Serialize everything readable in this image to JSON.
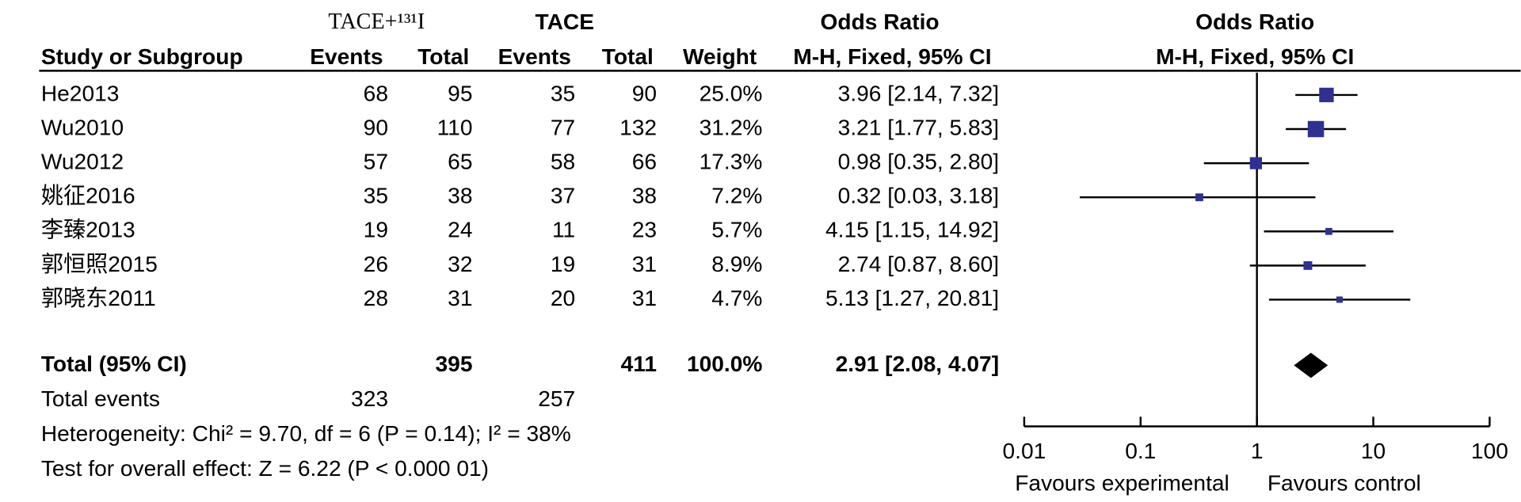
{
  "chart_data": {
    "type": "forest",
    "group_headers": [
      "TACE+¹³¹I",
      "TACE"
    ],
    "ci_column_title": "Odds Ratio",
    "columns": [
      "Study or Subgroup",
      "Events",
      "Total",
      "Events",
      "Total",
      "Weight",
      "M-H, Fixed, 95% CI"
    ],
    "plot_title": "Odds Ratio",
    "plot_subtitle": "M-H, Fixed, 95% CI",
    "studies": [
      {
        "name": "He2013",
        "exp_events": 68,
        "exp_total": 95,
        "ctl_events": 35,
        "ctl_total": 90,
        "weight": 25.0,
        "weight_label": "25.0%",
        "or": 3.96,
        "ci_low": 2.14,
        "ci_high": 7.32,
        "ci_label": "3.96 [2.14, 7.32]"
      },
      {
        "name": "Wu2010",
        "exp_events": 90,
        "exp_total": 110,
        "ctl_events": 77,
        "ctl_total": 132,
        "weight": 31.2,
        "weight_label": "31.2%",
        "or": 3.21,
        "ci_low": 1.77,
        "ci_high": 5.83,
        "ci_label": "3.21 [1.77, 5.83]"
      },
      {
        "name": "Wu2012",
        "exp_events": 57,
        "exp_total": 65,
        "ctl_events": 58,
        "ctl_total": 66,
        "weight": 17.3,
        "weight_label": "17.3%",
        "or": 0.98,
        "ci_low": 0.35,
        "ci_high": 2.8,
        "ci_label": "0.98 [0.35, 2.80]"
      },
      {
        "name": "姚征2016",
        "exp_events": 35,
        "exp_total": 38,
        "ctl_events": 37,
        "ctl_total": 38,
        "weight": 7.2,
        "weight_label": "7.2%",
        "or": 0.32,
        "ci_low": 0.03,
        "ci_high": 3.18,
        "ci_label": "0.32 [0.03, 3.18]"
      },
      {
        "name": "李臻2013",
        "exp_events": 19,
        "exp_total": 24,
        "ctl_events": 11,
        "ctl_total": 23,
        "weight": 5.7,
        "weight_label": "5.7%",
        "or": 4.15,
        "ci_low": 1.15,
        "ci_high": 14.92,
        "ci_label": "4.15 [1.15, 14.92]"
      },
      {
        "name": "郭恒照2015",
        "exp_events": 26,
        "exp_total": 32,
        "ctl_events": 19,
        "ctl_total": 31,
        "weight": 8.9,
        "weight_label": "8.9%",
        "or": 2.74,
        "ci_low": 0.87,
        "ci_high": 8.6,
        "ci_label": "2.74 [0.87, 8.60]"
      },
      {
        "name": "郭晓东2011",
        "exp_events": 28,
        "exp_total": 31,
        "ctl_events": 20,
        "ctl_total": 31,
        "weight": 4.7,
        "weight_label": "4.7%",
        "or": 5.13,
        "ci_low": 1.27,
        "ci_high": 20.81,
        "ci_label": "5.13 [1.27, 20.81]"
      }
    ],
    "total": {
      "name": "Total (95% CI)",
      "exp_total": 395,
      "ctl_total": 411,
      "weight": 100.0,
      "weight_label": "100.0%",
      "or": 2.91,
      "ci_low": 2.08,
      "ci_high": 4.07,
      "ci_label": "2.91 [2.08, 4.07]"
    },
    "total_events": {
      "name": "Total events",
      "exp_events": 323,
      "ctl_events": 257
    },
    "heterogeneity": "Heterogeneity: Chi² = 9.70, df = 6 (P = 0.14); I² = 38%",
    "overall_effect": "Test for overall effect: Z = 6.22 (P < 0.000 01)",
    "log_x": true,
    "xlim": [
      0.01,
      100
    ],
    "xticks": [
      0.01,
      0.1,
      1,
      10,
      100
    ],
    "x_labels": [
      "Favours experimental",
      "Favours control"
    ],
    "color": "#2e3192"
  }
}
